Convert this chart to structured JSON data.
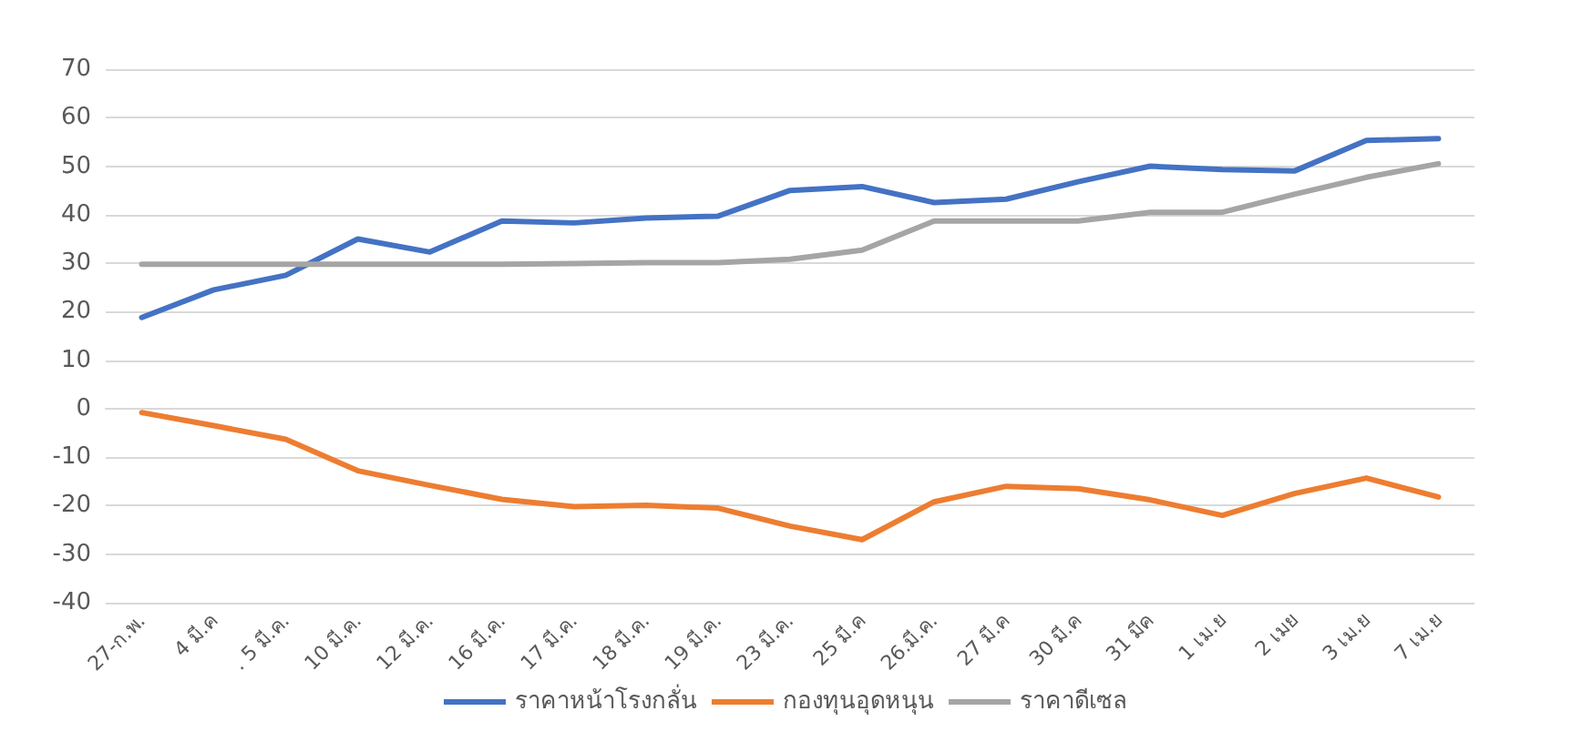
{
  "chart_data": {
    "type": "line",
    "categories": [
      "27-ก.พ.",
      "4 มี.ค",
      ". 5 มี.ค.",
      "10 มี.ค.",
      "12 มี.ค.",
      "16 มี.ค.",
      "17 มี.ค.",
      "18 มี.ค.",
      "19 มี.ค.",
      "23 มี.ค.",
      "25 มี.ค",
      "26.มี.ค.",
      "27 มี.ค",
      "30 มี.ค",
      "31 มีค",
      "1 เม.ย",
      "2 เมย",
      "3 เม.ย",
      "7 เม.ย"
    ],
    "series": [
      {
        "name": "ราคาหน้าโรงกลั่น",
        "color": "#4472c4",
        "values": [
          18.8,
          24.5,
          27.5,
          35,
          32.3,
          38.7,
          38.3,
          39.3,
          39.7,
          45,
          45.8,
          42.5,
          43.2,
          46.8,
          50,
          49.3,
          49,
          55.3,
          55.7
        ]
      },
      {
        "name": "กองทุนอุดหนุน",
        "color": "#ed7d31",
        "values": [
          -0.8,
          -3.5,
          -6.3,
          -12.8,
          -15.8,
          -18.7,
          -20.2,
          -19.9,
          -20.5,
          -24.2,
          -27,
          -19.2,
          -16,
          -16.5,
          -18.8,
          -22,
          -17.5,
          -14.3,
          -18.2
        ]
      },
      {
        "name": "ราคาดีเซล",
        "color": "#a5a5a5",
        "values": [
          29.8,
          29.8,
          29.8,
          29.8,
          29.8,
          29.8,
          29.9,
          30.1,
          30.1,
          30.8,
          32.7,
          38.7,
          38.7,
          38.7,
          40.5,
          40.5,
          44.2,
          47.7,
          50.5
        ]
      }
    ],
    "ylim": [
      -40,
      70
    ],
    "yticks": [
      -40,
      -30,
      -20,
      -10,
      0,
      10,
      20,
      30,
      40,
      50,
      60,
      70
    ],
    "grid": "y",
    "legend": "bottom",
    "marker": "none",
    "line_style": "solid"
  }
}
